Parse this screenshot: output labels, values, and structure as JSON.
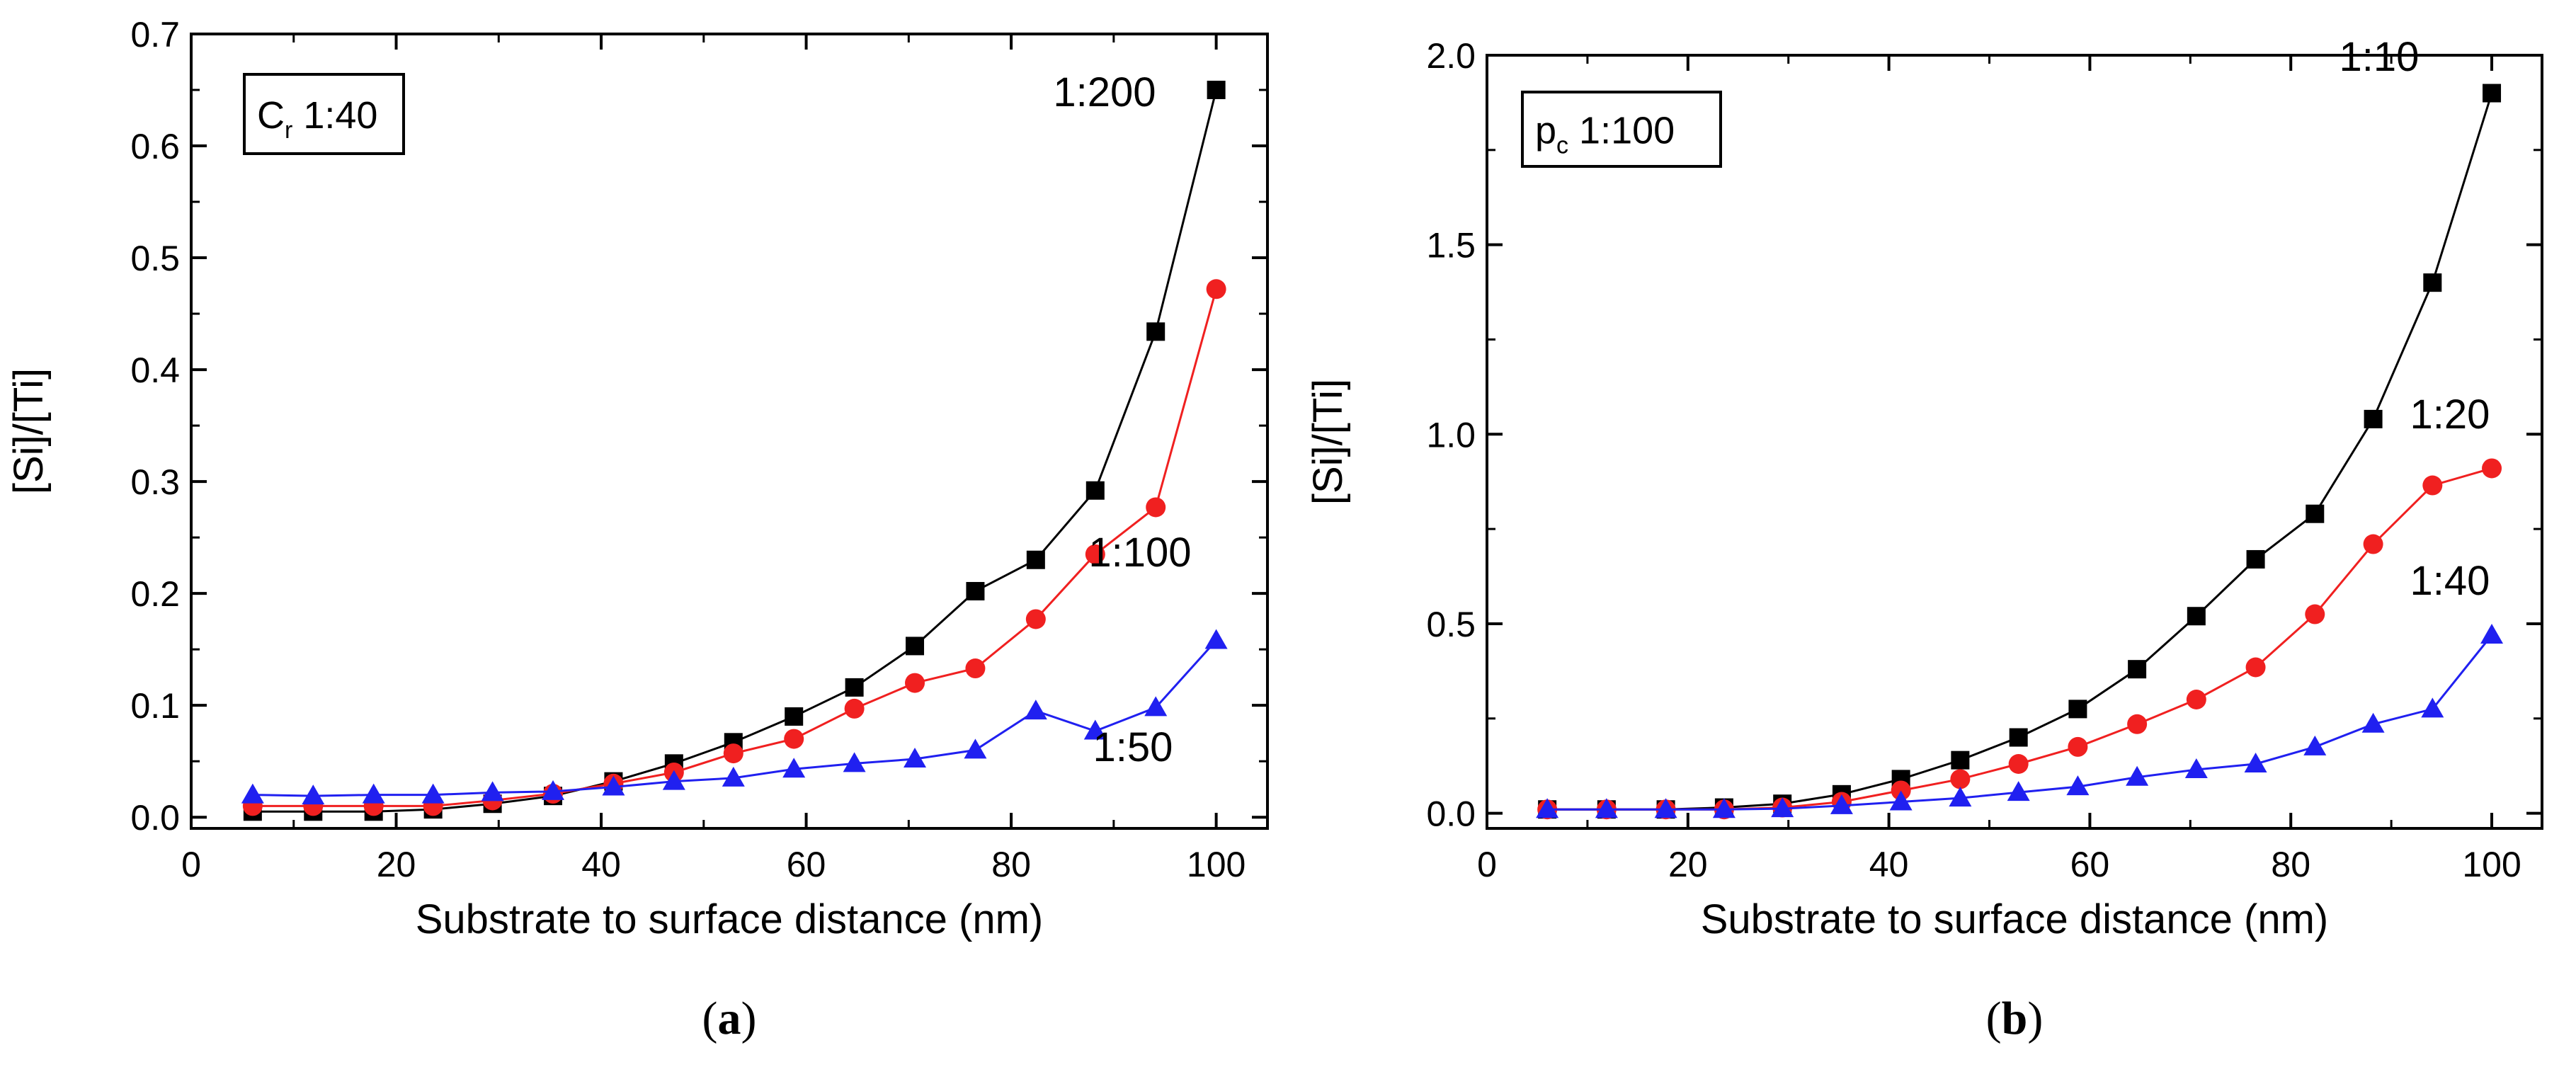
{
  "chart_data": [
    {
      "id": "a",
      "type": "line",
      "caption": {
        "open": "(",
        "letter": "a",
        "close": ")"
      },
      "inset": {
        "main": "C",
        "sub": "r",
        "rest": " 1:40"
      },
      "xlabel": "Substrate to surface distance (nm)",
      "ylabel": "[Si]/[Ti]",
      "xlim": [
        0,
        105
      ],
      "ylim": [
        -0.01,
        0.7
      ],
      "xticks": [
        0,
        20,
        40,
        60,
        80,
        100
      ],
      "xtick_labels": [
        "0",
        "20",
        "40",
        "60",
        "80",
        "100"
      ],
      "yticks": [
        0.0,
        0.1,
        0.2,
        0.3,
        0.4,
        0.5,
        0.6,
        0.7
      ],
      "ytick_labels": [
        "0.0",
        "0.1",
        "0.2",
        "0.3",
        "0.4",
        "0.5",
        "0.6",
        "0.7"
      ],
      "x": [
        6,
        11.9,
        17.8,
        23.6,
        29.4,
        35.3,
        41.2,
        47.1,
        52.9,
        58.8,
        64.7,
        70.6,
        76.5,
        82.4,
        88.2,
        94.1,
        100
      ],
      "series": [
        {
          "name": "1:200",
          "color": "#000000",
          "marker": "square",
          "values": [
            0.005,
            0.005,
            0.005,
            0.007,
            0.012,
            0.019,
            0.032,
            0.048,
            0.067,
            0.09,
            0.116,
            0.153,
            0.202,
            0.23,
            0.292,
            0.434,
            0.65
          ]
        },
        {
          "name": "1:100",
          "color": "#f02020",
          "marker": "circle",
          "values": [
            0.01,
            0.01,
            0.01,
            0.01,
            0.015,
            0.021,
            0.03,
            0.04,
            0.057,
            0.07,
            0.097,
            0.12,
            0.133,
            0.177,
            0.235,
            0.277,
            0.472
          ]
        },
        {
          "name": "1:50",
          "color": "#2020f0",
          "marker": "triangle",
          "values": [
            0.02,
            0.019,
            0.02,
            0.02,
            0.022,
            0.023,
            0.027,
            0.032,
            0.035,
            0.043,
            0.048,
            0.052,
            0.06,
            0.095,
            0.077,
            0.098,
            0.158
          ]
        }
      ],
      "series_labels": [
        "1:200",
        "1:100",
        "1:50"
      ]
    },
    {
      "id": "b",
      "type": "line",
      "caption": {
        "open": "(",
        "letter": "b",
        "close": ")"
      },
      "inset": {
        "main": "p",
        "sub": "c",
        "rest": " 1:100"
      },
      "xlabel": "Substrate to surface distance (nm)",
      "ylabel": "[Si]/[Ti]",
      "xlim": [
        0,
        105
      ],
      "ylim": [
        -0.04,
        2.0
      ],
      "xticks": [
        0,
        20,
        40,
        60,
        80,
        100
      ],
      "xtick_labels": [
        "0",
        "20",
        "40",
        "60",
        "80",
        "100"
      ],
      "yticks": [
        0.0,
        0.5,
        1.0,
        1.5,
        2.0
      ],
      "ytick_labels": [
        "0.0",
        "0.5",
        "1.0",
        "1.5",
        "2.0"
      ],
      "x": [
        6,
        11.9,
        17.8,
        23.6,
        29.4,
        35.3,
        41.2,
        47.1,
        52.9,
        58.8,
        64.7,
        70.6,
        76.5,
        82.4,
        88.2,
        94.1,
        100
      ],
      "series": [
        {
          "name": "1:10",
          "color": "#000000",
          "marker": "square",
          "values": [
            0.01,
            0.01,
            0.01,
            0.015,
            0.025,
            0.05,
            0.09,
            0.14,
            0.2,
            0.275,
            0.38,
            0.52,
            0.67,
            0.79,
            1.04,
            1.4,
            1.9
          ]
        },
        {
          "name": "1:20",
          "color": "#f02020",
          "marker": "circle",
          "values": [
            0.01,
            0.01,
            0.01,
            0.01,
            0.015,
            0.03,
            0.06,
            0.09,
            0.13,
            0.175,
            0.235,
            0.3,
            0.385,
            0.525,
            0.71,
            0.865,
            0.91
          ]
        },
        {
          "name": "1:40",
          "color": "#2020f0",
          "marker": "triangle",
          "values": [
            0.01,
            0.01,
            0.01,
            0.01,
            0.012,
            0.02,
            0.03,
            0.04,
            0.055,
            0.07,
            0.095,
            0.115,
            0.13,
            0.175,
            0.235,
            0.275,
            0.47
          ]
        }
      ],
      "series_labels": [
        "1:10",
        "1:20",
        "1:40"
      ]
    }
  ]
}
